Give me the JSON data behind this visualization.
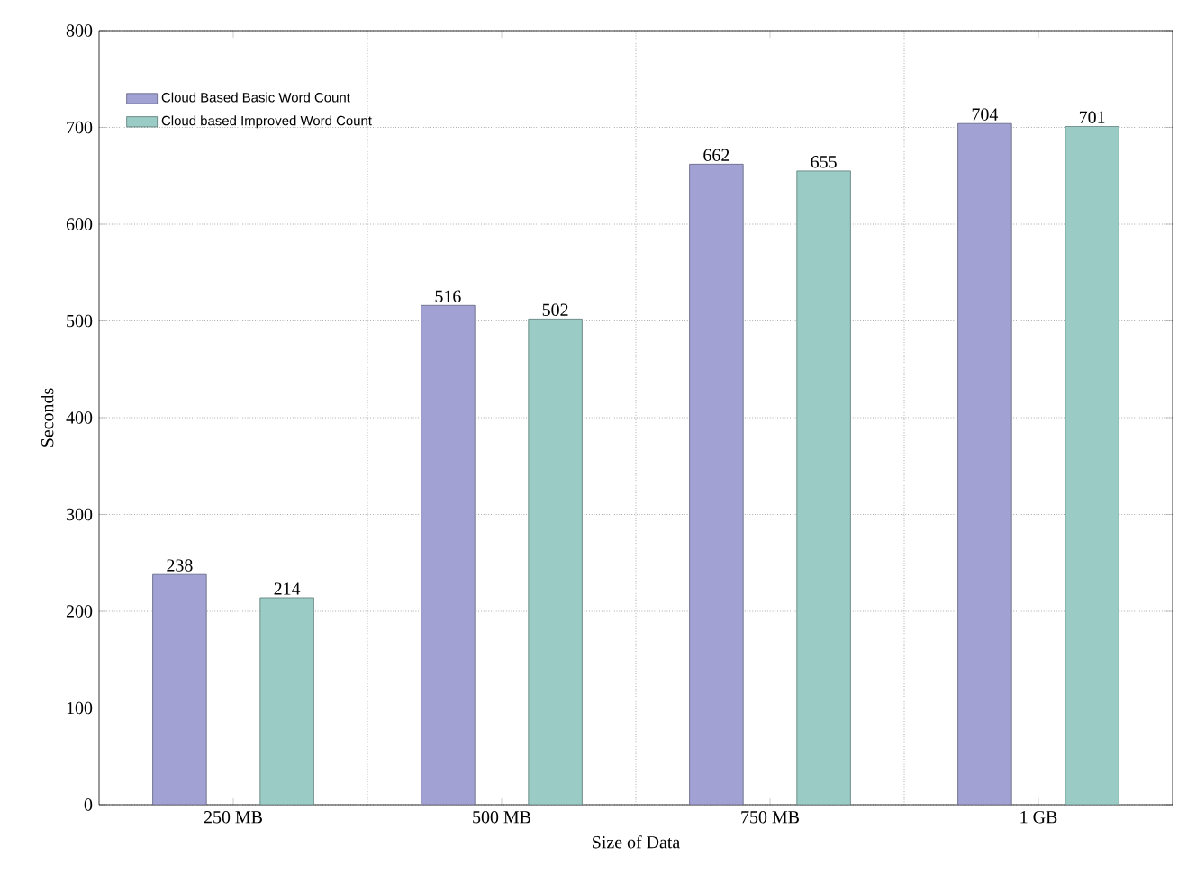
{
  "chart_data": {
    "type": "bar",
    "xlabel": "Size of Data",
    "ylabel": "Seconds",
    "categories": [
      "250 MB",
      "500 MB",
      "750 MB",
      "1 GB"
    ],
    "series": [
      {
        "name": "Cloud Based Basic Word Count",
        "color": "#a1a1d3",
        "values": [
          238,
          516,
          662,
          704
        ]
      },
      {
        "name": "Cloud based Improved Word Count",
        "color": "#9acbc5",
        "values": [
          214,
          502,
          655,
          701
        ]
      }
    ],
    "ylim": [
      0,
      800
    ],
    "yticks": [
      0,
      100,
      200,
      300,
      400,
      500,
      600,
      700,
      800
    ],
    "grid": true,
    "legend": "top left",
    "data_labels": true
  }
}
